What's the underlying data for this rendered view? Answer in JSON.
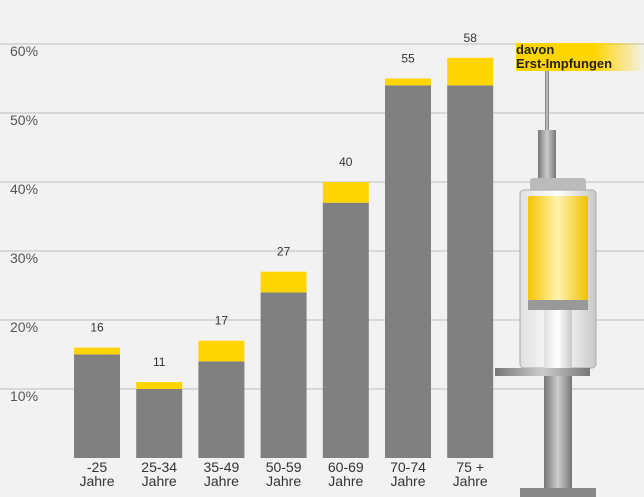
{
  "chart_data": {
    "type": "bar",
    "stacked": true,
    "categories": [
      "-25\nJahre",
      "25-34\nJahre",
      "35-49\nJahre",
      "50-59\nJahre",
      "60-69\nJahre",
      "70-74\nJahre",
      "75 +\nJahre"
    ],
    "series": [
      {
        "color": "#808080",
        "values": [
          15,
          10,
          14,
          24,
          37,
          54,
          54
        ]
      },
      {
        "name": "davon\nErst-Impfungen",
        "color": "#ffd500",
        "values": [
          1,
          1,
          3,
          3,
          3,
          1,
          4
        ]
      }
    ],
    "totals": [
      16,
      11,
      17,
      27,
      40,
      55,
      58
    ],
    "ylim": [
      0,
      65
    ],
    "yticks": [
      {
        "value": 10,
        "label": "10%"
      },
      {
        "value": 20,
        "label": "20%"
      },
      {
        "value": 30,
        "label": "30%"
      },
      {
        "value": 40,
        "label": "40%"
      },
      {
        "value": 50,
        "label": "50%"
      },
      {
        "value": 60,
        "label": "60%"
      }
    ],
    "grid": true
  }
}
